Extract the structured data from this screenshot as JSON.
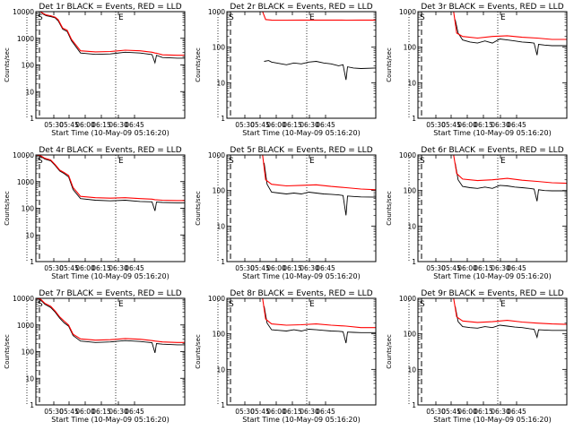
{
  "chart_data": [
    {
      "type": "line",
      "title": "Det 1r BLACK = Events, RED = LLD",
      "xlabel": "Start Time (10-May-09 05:16:20)",
      "ylabel": "Counts/sec",
      "yscale": "log",
      "ylim": [
        1,
        10000
      ],
      "x_ticks": [
        "05:30",
        "05:45",
        "06:00",
        "06:15",
        "06:30",
        "06:45"
      ],
      "y_ticks": [
        "1",
        "10",
        "100",
        "1000",
        "10000"
      ],
      "markers": [
        "S",
        "E"
      ],
      "series": [
        {
          "name": "Events",
          "color": "#000000",
          "x": [
            0.0,
            0.03,
            0.05,
            0.07,
            0.1,
            0.13,
            0.15,
            0.18,
            0.21,
            0.24,
            0.3,
            0.4,
            0.5,
            0.6,
            0.7,
            0.78,
            0.8,
            0.81,
            0.85,
            0.95,
            1.0
          ],
          "y": [
            10000,
            10000,
            8000,
            7000,
            6500,
            5800,
            4500,
            2200,
            1800,
            800,
            280,
            250,
            260,
            300,
            280,
            245,
            120,
            230,
            190,
            180,
            180
          ]
        },
        {
          "name": "LLD",
          "color": "#ff0000",
          "x": [
            0.0,
            0.03,
            0.05,
            0.07,
            0.1,
            0.13,
            0.15,
            0.18,
            0.21,
            0.24,
            0.3,
            0.4,
            0.5,
            0.6,
            0.7,
            0.78,
            0.8,
            0.81,
            0.85,
            0.95,
            1.0
          ],
          "y": [
            10000,
            10000,
            8500,
            7500,
            7000,
            6200,
            5000,
            2400,
            2000,
            900,
            340,
            310,
            320,
            360,
            340,
            300,
            280,
            275,
            240,
            230,
            230
          ]
        }
      ]
    },
    {
      "type": "line",
      "title": "Det 2r BLACK = Events, RED = LLD",
      "xlabel": "Start Time (10-May-09 05:16:20)",
      "ylabel": "Counts/sec",
      "yscale": "log",
      "ylim": [
        1,
        1000
      ],
      "x_ticks": [
        "05:30",
        "05:45",
        "06:00",
        "06:15",
        "06:30",
        "06:45"
      ],
      "y_ticks": [
        "1",
        "10",
        "100",
        "1000"
      ],
      "markers": [
        "S",
        "E"
      ],
      "series": [
        {
          "name": "Events",
          "color": "#000000",
          "x": [
            0.25,
            0.28,
            0.3,
            0.35,
            0.4,
            0.45,
            0.5,
            0.55,
            0.6,
            0.65,
            0.7,
            0.75,
            0.78,
            0.8,
            0.81,
            0.85,
            0.9,
            1.0
          ],
          "y": [
            40,
            42,
            38,
            35,
            32,
            36,
            34,
            38,
            40,
            36,
            34,
            30,
            32,
            12,
            28,
            26,
            25,
            26
          ]
        },
        {
          "name": "LLD",
          "color": "#ff0000",
          "x": [
            0.0,
            0.2,
            0.24,
            0.26,
            0.3,
            0.4,
            0.5,
            0.6,
            0.7,
            0.8,
            0.9,
            1.0
          ],
          "y": [
            1000,
            1000,
            1000,
            600,
            580,
            575,
            580,
            580,
            578,
            575,
            580,
            580
          ]
        }
      ]
    },
    {
      "type": "line",
      "title": "Det 3r BLACK = Events, RED = LLD",
      "xlabel": "Start Time (10-May-09 05:16:20)",
      "ylabel": "Counts/sec",
      "yscale": "log",
      "ylim": [
        1,
        1000
      ],
      "x_ticks": [
        "05:30",
        "05:45",
        "06:00",
        "06:15",
        "06:30",
        "06:45"
      ],
      "y_ticks": [
        "1",
        "10",
        "100",
        "1000"
      ],
      "markers": [
        "S",
        "E"
      ],
      "series": [
        {
          "name": "Events",
          "color": "#000000",
          "x": [
            0.25,
            0.27,
            0.3,
            0.35,
            0.4,
            0.45,
            0.5,
            0.55,
            0.6,
            0.65,
            0.7,
            0.75,
            0.78,
            0.8,
            0.81,
            0.85,
            0.9,
            1.0
          ],
          "y": [
            600,
            250,
            160,
            140,
            130,
            150,
            130,
            170,
            160,
            150,
            140,
            135,
            130,
            60,
            120,
            115,
            110,
            110
          ]
        },
        {
          "name": "LLD",
          "color": "#ff0000",
          "x": [
            0.0,
            0.2,
            0.24,
            0.26,
            0.3,
            0.4,
            0.5,
            0.6,
            0.7,
            0.8,
            0.9,
            1.0
          ],
          "y": [
            1000,
            1000,
            1000,
            250,
            200,
            180,
            200,
            210,
            190,
            180,
            165,
            165
          ]
        }
      ]
    },
    {
      "type": "line",
      "title": "Det 4r BLACK = Events, RED = LLD",
      "xlabel": "Start Time (10-May-09 05:16:20)",
      "ylabel": "Counts/sec",
      "yscale": "log",
      "ylim": [
        1,
        10000
      ],
      "x_ticks": [
        "05:30",
        "05:45",
        "06:00",
        "06:15",
        "06:30",
        "06:45"
      ],
      "y_ticks": [
        "1",
        "10",
        "100",
        "1000",
        "10000"
      ],
      "markers": [
        "S",
        "E"
      ],
      "series": [
        {
          "name": "Events",
          "color": "#000000",
          "x": [
            0.0,
            0.03,
            0.06,
            0.1,
            0.13,
            0.16,
            0.19,
            0.22,
            0.25,
            0.3,
            0.4,
            0.5,
            0.6,
            0.7,
            0.78,
            0.8,
            0.81,
            0.85,
            0.95,
            1.0
          ],
          "y": [
            10000,
            9000,
            7000,
            6000,
            4000,
            2500,
            2000,
            1500,
            500,
            230,
            200,
            190,
            200,
            180,
            175,
            80,
            170,
            165,
            160,
            160
          ]
        },
        {
          "name": "LLD",
          "color": "#ff0000",
          "x": [
            0.0,
            0.03,
            0.06,
            0.1,
            0.13,
            0.16,
            0.19,
            0.22,
            0.25,
            0.3,
            0.4,
            0.5,
            0.6,
            0.7,
            0.78,
            0.8,
            0.85,
            0.95,
            1.0
          ],
          "y": [
            10000,
            9500,
            7500,
            6500,
            4300,
            2700,
            2200,
            1700,
            600,
            280,
            250,
            240,
            250,
            230,
            220,
            210,
            200,
            195,
            195
          ]
        }
      ]
    },
    {
      "type": "line",
      "title": "Det 5r BLACK = Events, RED = LLD",
      "xlabel": "Start Time (10-May-09 05:16:20)",
      "ylabel": "Counts/sec",
      "yscale": "log",
      "ylim": [
        1,
        1000
      ],
      "x_ticks": [
        "05:30",
        "05:45",
        "06:00",
        "06:15",
        "06:30",
        "06:45"
      ],
      "y_ticks": [
        "1",
        "10",
        "100",
        "1000"
      ],
      "markers": [
        "S",
        "E"
      ],
      "series": [
        {
          "name": "Events",
          "color": "#000000",
          "x": [
            0.25,
            0.27,
            0.3,
            0.35,
            0.4,
            0.45,
            0.5,
            0.55,
            0.6,
            0.65,
            0.7,
            0.75,
            0.78,
            0.8,
            0.81,
            0.85,
            0.9,
            1.0
          ],
          "y": [
            600,
            150,
            90,
            85,
            80,
            85,
            80,
            90,
            85,
            80,
            78,
            75,
            72,
            20,
            70,
            68,
            66,
            65
          ]
        },
        {
          "name": "LLD",
          "color": "#ff0000",
          "x": [
            0.0,
            0.2,
            0.24,
            0.26,
            0.3,
            0.4,
            0.5,
            0.6,
            0.7,
            0.8,
            0.9,
            1.0
          ],
          "y": [
            1000,
            1000,
            1000,
            200,
            150,
            135,
            140,
            145,
            130,
            120,
            110,
            105
          ]
        }
      ]
    },
    {
      "type": "line",
      "title": "Det 6r BLACK = Events, RED = LLD",
      "xlabel": "Start Time (10-May-09 05:16:20)",
      "ylabel": "Counts/sec",
      "yscale": "log",
      "ylim": [
        1,
        1000
      ],
      "x_ticks": [
        "05:30",
        "05:45",
        "06:00",
        "06:15",
        "06:30",
        "06:45"
      ],
      "y_ticks": [
        "1",
        "10",
        "100",
        "1000"
      ],
      "markers": [
        "S",
        "E"
      ],
      "series": [
        {
          "name": "Events",
          "color": "#000000",
          "x": [
            0.25,
            0.27,
            0.3,
            0.35,
            0.4,
            0.45,
            0.5,
            0.55,
            0.6,
            0.65,
            0.7,
            0.75,
            0.78,
            0.8,
            0.81,
            0.85,
            0.9,
            1.0
          ],
          "y": [
            600,
            200,
            130,
            120,
            115,
            125,
            115,
            140,
            135,
            125,
            120,
            115,
            110,
            50,
            105,
            100,
            98,
            98
          ]
        },
        {
          "name": "LLD",
          "color": "#ff0000",
          "x": [
            0.0,
            0.2,
            0.24,
            0.26,
            0.3,
            0.4,
            0.5,
            0.6,
            0.7,
            0.8,
            0.9,
            1.0
          ],
          "y": [
            1000,
            1000,
            1000,
            300,
            210,
            190,
            200,
            220,
            195,
            180,
            165,
            160
          ]
        }
      ]
    },
    {
      "type": "line",
      "title": "Det 7r BLACK = Events, RED = LLD",
      "xlabel": "Start Time (10-May-09 05:16:20)",
      "ylabel": "Counts/sec",
      "yscale": "log",
      "ylim": [
        1,
        10000
      ],
      "x_ticks": [
        "05:30",
        "05:45",
        "06:00",
        "06:15",
        "06:30",
        "06:45"
      ],
      "y_ticks": [
        "1",
        "10",
        "100",
        "1000",
        "10000"
      ],
      "markers": [
        "S",
        "E"
      ],
      "series": [
        {
          "name": "Events",
          "color": "#000000",
          "x": [
            0.0,
            0.03,
            0.06,
            0.1,
            0.13,
            0.16,
            0.19,
            0.22,
            0.25,
            0.3,
            0.4,
            0.5,
            0.6,
            0.7,
            0.78,
            0.8,
            0.81,
            0.85,
            0.95,
            1.0
          ],
          "y": [
            10000,
            9000,
            6000,
            4500,
            3000,
            1800,
            1200,
            900,
            400,
            250,
            220,
            230,
            260,
            240,
            215,
            90,
            200,
            190,
            180,
            180
          ]
        },
        {
          "name": "LLD",
          "color": "#ff0000",
          "x": [
            0.0,
            0.03,
            0.06,
            0.1,
            0.13,
            0.16,
            0.19,
            0.22,
            0.25,
            0.3,
            0.4,
            0.5,
            0.6,
            0.7,
            0.78,
            0.8,
            0.85,
            0.95,
            1.0
          ],
          "y": [
            10000,
            9500,
            6500,
            5000,
            3300,
            2000,
            1400,
            1000,
            450,
            300,
            270,
            280,
            310,
            290,
            260,
            250,
            230,
            220,
            220
          ]
        }
      ]
    },
    {
      "type": "line",
      "title": "Det 8r BLACK = Events, RED = LLD",
      "xlabel": "Start Time (10-May-09 05:16:20)",
      "ylabel": "Counts/sec",
      "yscale": "log",
      "ylim": [
        1,
        1000
      ],
      "x_ticks": [
        "05:30",
        "05:45",
        "06:00",
        "06:15",
        "06:30",
        "06:45"
      ],
      "y_ticks": [
        "1",
        "10",
        "100",
        "1000"
      ],
      "markers": [
        "S",
        "E"
      ],
      "series": [
        {
          "name": "Events",
          "color": "#000000",
          "x": [
            0.25,
            0.27,
            0.3,
            0.35,
            0.4,
            0.45,
            0.5,
            0.55,
            0.6,
            0.65,
            0.7,
            0.75,
            0.78,
            0.8,
            0.81,
            0.85,
            0.9,
            1.0
          ],
          "y": [
            600,
            200,
            130,
            125,
            120,
            130,
            120,
            135,
            130,
            125,
            120,
            118,
            115,
            55,
            112,
            110,
            108,
            108
          ]
        },
        {
          "name": "LLD",
          "color": "#ff0000",
          "x": [
            0.0,
            0.2,
            0.24,
            0.26,
            0.3,
            0.4,
            0.5,
            0.6,
            0.7,
            0.8,
            0.9,
            1.0
          ],
          "y": [
            1000,
            1000,
            1000,
            260,
            190,
            175,
            180,
            190,
            175,
            165,
            150,
            150
          ]
        }
      ]
    },
    {
      "type": "line",
      "title": "Det 9r BLACK = Events, RED = LLD",
      "xlabel": "Start Time (10-May-09 05:16:20)",
      "ylabel": "Counts/sec",
      "yscale": "log",
      "ylim": [
        1,
        1000
      ],
      "x_ticks": [
        "05:30",
        "05:45",
        "06:00",
        "06:15",
        "06:30",
        "06:45"
      ],
      "y_ticks": [
        "1",
        "10",
        "100",
        "1000"
      ],
      "markers": [
        "S",
        "E"
      ],
      "series": [
        {
          "name": "Events",
          "color": "#000000",
          "x": [
            0.25,
            0.27,
            0.3,
            0.35,
            0.4,
            0.45,
            0.5,
            0.55,
            0.6,
            0.65,
            0.7,
            0.75,
            0.78,
            0.8,
            0.81,
            0.85,
            0.9,
            1.0
          ],
          "y": [
            600,
            220,
            160,
            150,
            145,
            160,
            150,
            175,
            165,
            155,
            150,
            140,
            135,
            80,
            130,
            128,
            125,
            125
          ]
        },
        {
          "name": "LLD",
          "color": "#ff0000",
          "x": [
            0.0,
            0.2,
            0.24,
            0.26,
            0.3,
            0.4,
            0.5,
            0.6,
            0.7,
            0.8,
            0.9,
            1.0
          ],
          "y": [
            1000,
            1000,
            1000,
            300,
            230,
            210,
            220,
            240,
            215,
            200,
            190,
            185
          ]
        }
      ]
    }
  ]
}
